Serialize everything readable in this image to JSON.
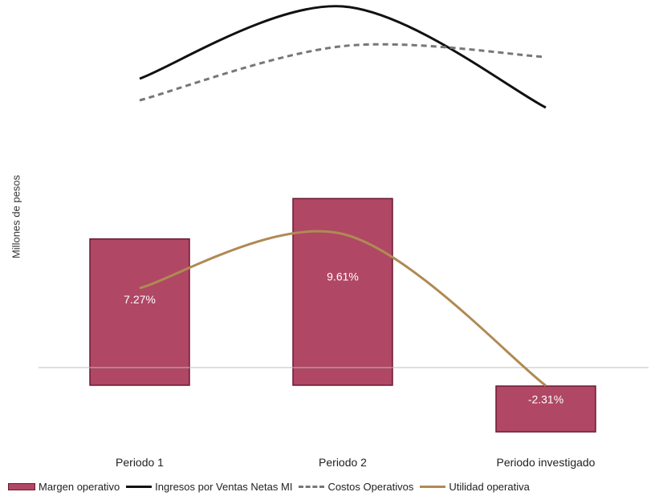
{
  "chart_data": {
    "type": "bar",
    "title": "",
    "ylabel": "Millones de pesos",
    "xlabel": "",
    "categories": [
      "Periodo 1",
      "Periodo 2",
      "Periodo investigado"
    ],
    "bar_series": {
      "name": "Margen operativo",
      "values": [
        7.27,
        9.61,
        -2.31
      ],
      "labels": [
        "7.27%",
        "9.61%",
        "-2.31%"
      ],
      "color": "#b04765",
      "edge_color": "#6b1a31"
    },
    "line_series": [
      {
        "name": "Ingresos por Ventas Netas MI",
        "relative_values": [
          0.8,
          1.0,
          0.72
        ],
        "color": "#111111",
        "style": "solid"
      },
      {
        "name": "Costos Operativos",
        "relative_values": [
          0.74,
          0.89,
          0.86
        ],
        "color": "#777777",
        "style": "dashed"
      },
      {
        "name": "Utilidad operativa",
        "relative_values": [
          0.22,
          0.37,
          -0.05
        ],
        "color": "#b08a53",
        "style": "solid"
      }
    ],
    "grid": false,
    "legend_position": "bottom"
  }
}
